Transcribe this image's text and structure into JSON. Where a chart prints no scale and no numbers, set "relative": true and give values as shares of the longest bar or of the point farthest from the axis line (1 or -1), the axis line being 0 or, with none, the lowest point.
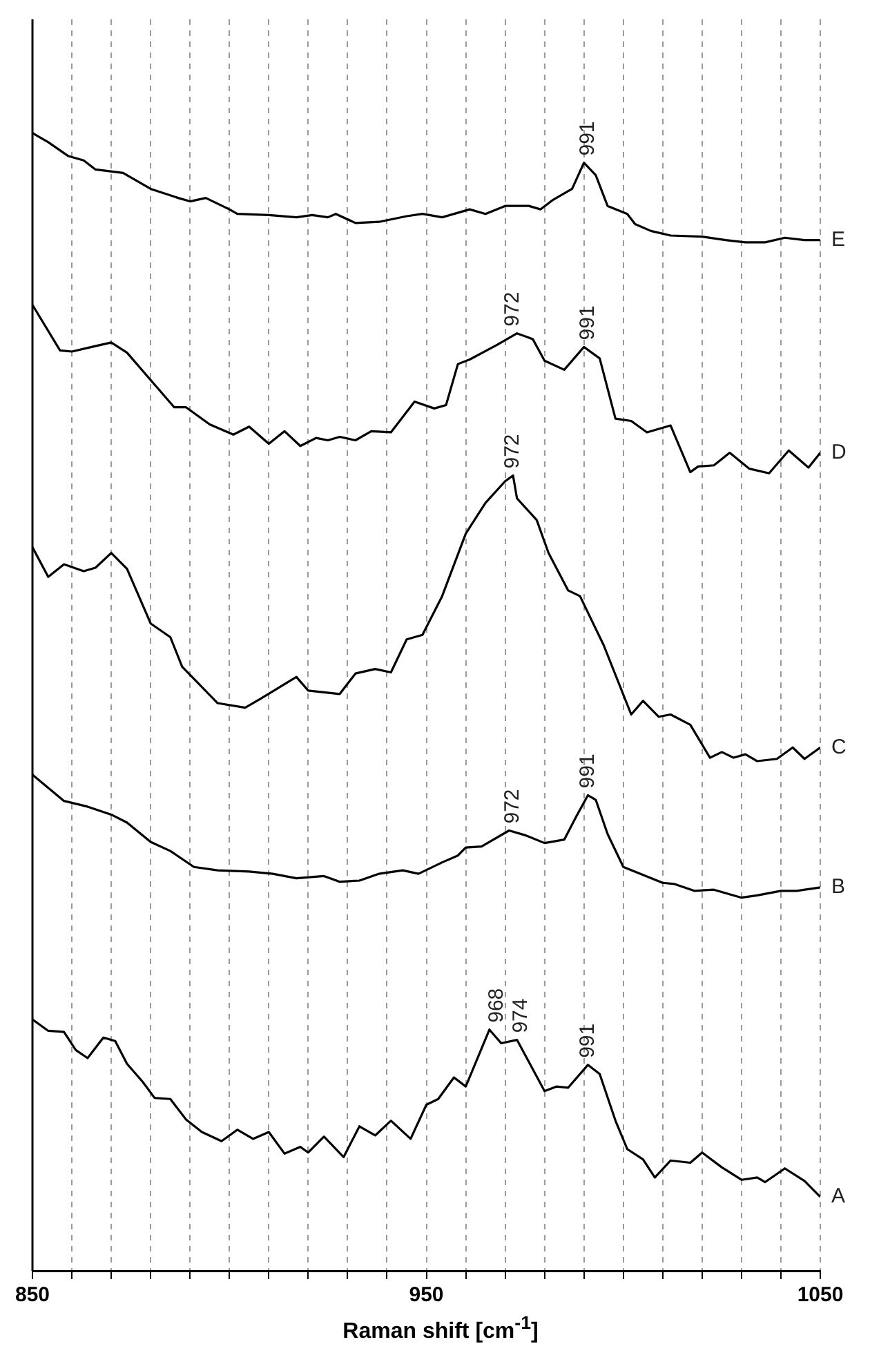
{
  "chart_data": {
    "type": "line",
    "relative": true,
    "xlabel": "Raman shift [cm$^{-1}$]",
    "xlim": [
      850,
      1050
    ],
    "xticks": [
      850,
      {
        "value": 860,
        "label": null
      },
      {
        "value": 870,
        "label": null
      },
      {
        "value": 880,
        "label": null
      },
      {
        "value": 890,
        "label": null
      },
      {
        "value": 900,
        "label": null
      },
      {
        "value": 910,
        "label": null
      },
      {
        "value": 920,
        "label": null
      },
      {
        "value": 930,
        "label": null
      },
      {
        "value": 940,
        "label": null
      },
      950,
      {
        "value": 960,
        "label": null
      },
      {
        "value": 970,
        "label": null
      },
      {
        "value": 980,
        "label": null
      },
      {
        "value": 990,
        "label": null
      },
      {
        "value": 1000,
        "label": null
      },
      {
        "value": 1010,
        "label": null
      },
      {
        "value": 1020,
        "label": null
      },
      {
        "value": 1030,
        "label": null
      },
      {
        "value": 1040,
        "label": null
      },
      1050
    ],
    "grid": "x",
    "legend": false,
    "tick_labels": "x",
    "marker": "none",
    "line_style": "solid",
    "series": [
      {
        "name": "A",
        "color": "#000000",
        "x": [
          850,
          854,
          858,
          861,
          864,
          868,
          871,
          874,
          878,
          881,
          885,
          889,
          893,
          898,
          902,
          906,
          910,
          914,
          918,
          920,
          924,
          929,
          933,
          937,
          941,
          946,
          950,
          953,
          957,
          960,
          966,
          969,
          973,
          980,
          983,
          986,
          991,
          994,
          998,
          1001,
          1005,
          1008,
          1012,
          1017,
          1020,
          1025,
          1030,
          1034,
          1036,
          1041,
          1046,
          1050
        ],
        "values": [
          0.221,
          0.211,
          0.21,
          0.194,
          0.187,
          0.205,
          0.202,
          0.182,
          0.166,
          0.152,
          0.151,
          0.133,
          0.122,
          0.114,
          0.124,
          0.116,
          0.122,
          0.103,
          0.109,
          0.104,
          0.118,
          0.1,
          0.127,
          0.119,
          0.132,
          0.116,
          0.146,
          0.151,
          0.17,
          0.162,
          0.212,
          0.2,
          0.203,
          0.158,
          0.162,
          0.161,
          0.181,
          0.173,
          0.132,
          0.107,
          0.098,
          0.082,
          0.097,
          0.095,
          0.104,
          0.091,
          0.08,
          0.082,
          0.078,
          0.09,
          0.079,
          0.065
        ]
      },
      {
        "name": "B",
        "color": "#000000",
        "x": [
          850,
          858,
          864,
          870,
          874,
          880,
          885,
          891,
          897,
          905,
          911,
          917,
          924,
          928,
          933,
          938,
          944,
          948,
          954,
          958,
          960,
          964,
          971,
          975,
          980,
          985,
          988,
          991,
          993,
          996,
          1000,
          1005,
          1010,
          1013,
          1018,
          1023,
          1030,
          1034,
          1040,
          1044,
          1050
        ],
        "values": [
          0.436,
          0.413,
          0.408,
          0.401,
          0.394,
          0.377,
          0.369,
          0.355,
          0.352,
          0.351,
          0.349,
          0.345,
          0.347,
          0.342,
          0.343,
          0.349,
          0.352,
          0.349,
          0.359,
          0.365,
          0.372,
          0.373,
          0.387,
          0.383,
          0.376,
          0.379,
          0.399,
          0.418,
          0.414,
          0.384,
          0.355,
          0.348,
          0.341,
          0.34,
          0.334,
          0.335,
          0.328,
          0.33,
          0.334,
          0.334,
          0.337
        ]
      },
      {
        "name": "C",
        "color": "#000000",
        "x": [
          850,
          854,
          858,
          863,
          866,
          870,
          874,
          880,
          885,
          888,
          897,
          904,
          908,
          917,
          920,
          928,
          932,
          937,
          941,
          945,
          949,
          954,
          960,
          965,
          970,
          972,
          973,
          978,
          981,
          986,
          989,
          995,
          1002,
          1005,
          1009,
          1012,
          1017,
          1022,
          1025,
          1028,
          1031,
          1034,
          1039,
          1043,
          1046,
          1050
        ],
        "values": [
          0.636,
          0.61,
          0.621,
          0.615,
          0.618,
          0.631,
          0.617,
          0.569,
          0.557,
          0.531,
          0.499,
          0.495,
          0.503,
          0.522,
          0.51,
          0.507,
          0.525,
          0.529,
          0.526,
          0.555,
          0.559,
          0.593,
          0.648,
          0.675,
          0.694,
          0.699,
          0.679,
          0.66,
          0.631,
          0.598,
          0.593,
          0.55,
          0.489,
          0.501,
          0.487,
          0.489,
          0.48,
          0.451,
          0.456,
          0.451,
          0.454,
          0.448,
          0.45,
          0.46,
          0.45,
          0.46
        ]
      },
      {
        "name": "D",
        "color": "#000000",
        "x": [
          850,
          857,
          860,
          865,
          870,
          874,
          880,
          886,
          889,
          895,
          901,
          905,
          910,
          914,
          918,
          922,
          925,
          928,
          932,
          936,
          941,
          947,
          952,
          955,
          958,
          961,
          968,
          973,
          977,
          980,
          985,
          990,
          994,
          998,
          1002,
          1006,
          1012,
          1017,
          1019,
          1023,
          1027,
          1032,
          1037,
          1042,
          1047,
          1050
        ],
        "values": [
          0.849,
          0.809,
          0.808,
          0.812,
          0.816,
          0.807,
          0.783,
          0.759,
          0.759,
          0.744,
          0.735,
          0.742,
          0.727,
          0.738,
          0.725,
          0.732,
          0.73,
          0.733,
          0.73,
          0.738,
          0.737,
          0.764,
          0.758,
          0.761,
          0.797,
          0.801,
          0.814,
          0.824,
          0.819,
          0.8,
          0.792,
          0.812,
          0.802,
          0.749,
          0.747,
          0.737,
          0.743,
          0.702,
          0.707,
          0.708,
          0.719,
          0.705,
          0.701,
          0.721,
          0.706,
          0.719
        ]
      },
      {
        "name": "E",
        "color": "#000000",
        "x": [
          850,
          854,
          859,
          863,
          866,
          873,
          880,
          887,
          890,
          894,
          900,
          902,
          910,
          917,
          921,
          925,
          927,
          932,
          938,
          945,
          949,
          954,
          961,
          965,
          970,
          976,
          979,
          982,
          987,
          990,
          993,
          996,
          1001,
          1003,
          1007,
          1012,
          1020,
          1026,
          1031,
          1036,
          1041,
          1046,
          1050
        ],
        "values": [
          1.0,
          0.992,
          0.98,
          0.976,
          0.968,
          0.965,
          0.951,
          0.943,
          0.94,
          0.943,
          0.933,
          0.929,
          0.928,
          0.926,
          0.928,
          0.926,
          0.929,
          0.921,
          0.922,
          0.927,
          0.929,
          0.926,
          0.933,
          0.929,
          0.936,
          0.936,
          0.933,
          0.941,
          0.951,
          0.974,
          0.963,
          0.936,
          0.929,
          0.92,
          0.914,
          0.91,
          0.909,
          0.906,
          0.904,
          0.904,
          0.908,
          0.906,
          0.906
        ]
      }
    ],
    "annotations": [
      {
        "text": "991",
        "x": 991,
        "y": 0.974
      },
      {
        "text": "972",
        "x": 972,
        "y": 0.824
      },
      {
        "text": "991",
        "x": 991,
        "y": 0.812
      },
      {
        "text": "972",
        "x": 972,
        "y": 0.699
      },
      {
        "text": "972",
        "x": 972,
        "y": 0.387
      },
      {
        "text": "991",
        "x": 991,
        "y": 0.418
      },
      {
        "text": "968",
        "x": 968,
        "y": 0.212
      },
      {
        "text": "974",
        "x": 974,
        "y": 0.203
      },
      {
        "text": "991",
        "x": 991,
        "y": 0.181
      }
    ]
  }
}
